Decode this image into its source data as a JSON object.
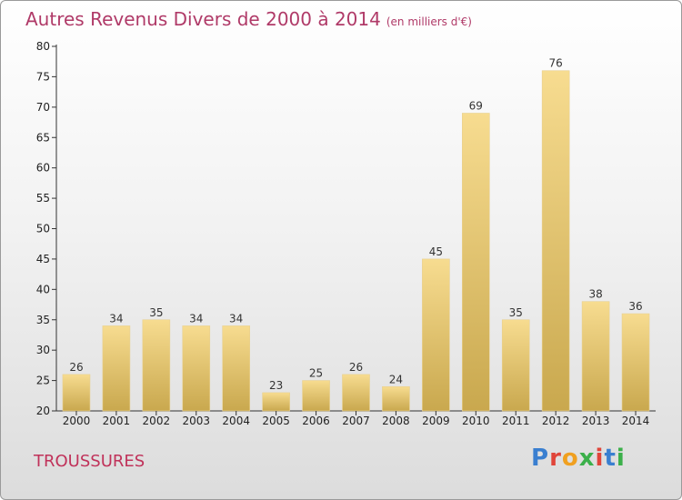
{
  "header": {
    "title": "Autres Revenus Divers de 2000 à 2014",
    "unit": "(en milliers d'€)"
  },
  "footer": {
    "place": "TROUSSURES",
    "logo": "Proxiti"
  },
  "colors": {
    "bar_top": "#f7dc90",
    "bar_bottom": "#c9a84e",
    "title": "#b03a68",
    "place": "#c0325a"
  },
  "chart_data": {
    "type": "bar",
    "title": "Autres Revenus Divers de 2000 à 2014",
    "xlabel": "",
    "ylabel": "",
    "ylim": [
      20,
      80
    ],
    "yticks": [
      20,
      25,
      30,
      35,
      40,
      45,
      50,
      55,
      60,
      65,
      70,
      75,
      80
    ],
    "grid": false,
    "categories": [
      "2000",
      "2001",
      "2002",
      "2003",
      "2004",
      "2005",
      "2006",
      "2007",
      "2008",
      "2009",
      "2010",
      "2011",
      "2012",
      "2013",
      "2014"
    ],
    "values": [
      26,
      34,
      35,
      34,
      34,
      23,
      25,
      26,
      24,
      45,
      69,
      35,
      76,
      38,
      36
    ]
  }
}
